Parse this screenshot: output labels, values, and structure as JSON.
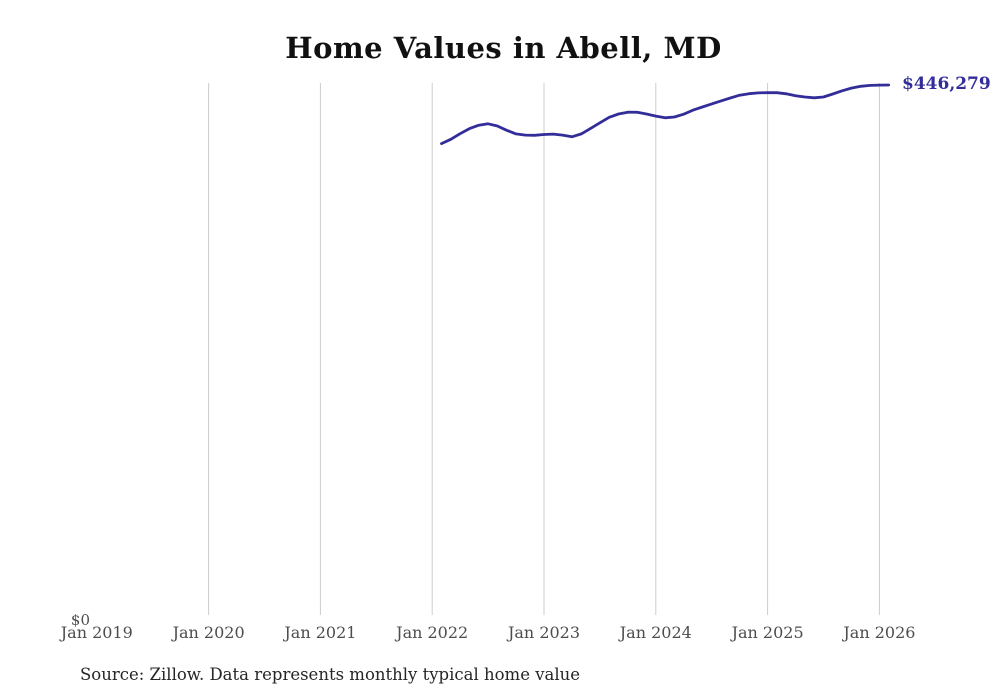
{
  "page": {
    "source_note": "Source: Zillow. Data represents monthly typical home value"
  },
  "chart_data": {
    "type": "line",
    "title": "Home Values in Abell, MD",
    "series_name": "Monthly typical home value",
    "unit": "USD",
    "x_ticks": [
      "Jan 2019",
      "Jan 2020",
      "Jan 2021",
      "Jan 2022",
      "Jan 2023",
      "Jan 2024",
      "Jan 2025",
      "Jan 2026"
    ],
    "y_zero_label": "$0",
    "start_month": "2022-02",
    "end_month": "2026-02",
    "values": [
      397000,
      400600,
      405300,
      409600,
      412500,
      413600,
      411800,
      408200,
      405100,
      404100,
      404000,
      404600,
      405000,
      404100,
      402700,
      405100,
      409800,
      414500,
      419100,
      421900,
      423400,
      423300,
      421900,
      420100,
      418700,
      419400,
      421700,
      425200,
      427800,
      430400,
      432900,
      435400,
      437700,
      439000,
      439700,
      439900,
      439800,
      438900,
      437300,
      436200,
      435500,
      436200,
      438700,
      441400,
      443700,
      445200,
      446000,
      446200,
      446279
    ],
    "final_value": 446279,
    "final_label": "$446,279",
    "ylim": [
      0,
      448000
    ],
    "grid": "vertical-yearly",
    "legend": "none",
    "line_color": "#322d99",
    "grid_color": "#cccccc"
  }
}
